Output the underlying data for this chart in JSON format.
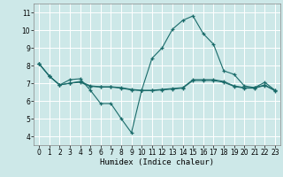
{
  "xlabel": "Humidex (Indice chaleur)",
  "background_color": "#cde8e8",
  "grid_color": "#ffffff",
  "line_color": "#1a6b6a",
  "xlim": [
    -0.5,
    23.5
  ],
  "ylim": [
    3.5,
    11.5
  ],
  "xticks": [
    0,
    1,
    2,
    3,
    4,
    5,
    6,
    7,
    8,
    9,
    10,
    11,
    12,
    13,
    14,
    15,
    16,
    17,
    18,
    19,
    20,
    21,
    22,
    23
  ],
  "yticks": [
    4,
    5,
    6,
    7,
    8,
    9,
    10,
    11
  ],
  "series1_x": [
    0,
    1,
    2,
    3,
    4,
    5,
    6,
    7,
    8,
    9,
    10,
    11,
    12,
    13,
    14,
    15,
    16,
    17,
    18,
    19,
    20,
    21,
    22,
    23
  ],
  "series1_y": [
    8.1,
    7.4,
    6.9,
    7.2,
    7.25,
    6.6,
    5.85,
    5.85,
    5.0,
    4.2,
    6.6,
    8.4,
    9.0,
    10.05,
    10.55,
    10.8,
    9.8,
    9.2,
    7.7,
    7.5,
    6.85,
    6.75,
    7.05,
    6.6
  ],
  "series2_x": [
    0,
    1,
    2,
    3,
    4,
    5,
    6,
    7,
    8,
    9,
    10,
    11,
    12,
    13,
    14,
    15,
    16,
    17,
    18,
    19,
    20,
    21,
    22,
    23
  ],
  "series2_y": [
    8.1,
    7.4,
    6.9,
    7.0,
    7.1,
    6.85,
    6.8,
    6.8,
    6.75,
    6.65,
    6.6,
    6.6,
    6.65,
    6.7,
    6.75,
    7.2,
    7.2,
    7.2,
    7.1,
    6.85,
    6.75,
    6.75,
    6.9,
    6.6
  ],
  "series3_x": [
    0,
    1,
    2,
    3,
    4,
    5,
    6,
    7,
    8,
    9,
    10,
    11,
    12,
    13,
    14,
    15,
    16,
    17,
    18,
    19,
    20,
    21,
    22,
    23
  ],
  "series3_y": [
    8.1,
    7.4,
    6.9,
    7.0,
    7.05,
    6.82,
    6.78,
    6.78,
    6.72,
    6.62,
    6.58,
    6.58,
    6.62,
    6.67,
    6.72,
    7.15,
    7.15,
    7.15,
    7.05,
    6.82,
    6.72,
    6.72,
    6.87,
    6.57
  ]
}
